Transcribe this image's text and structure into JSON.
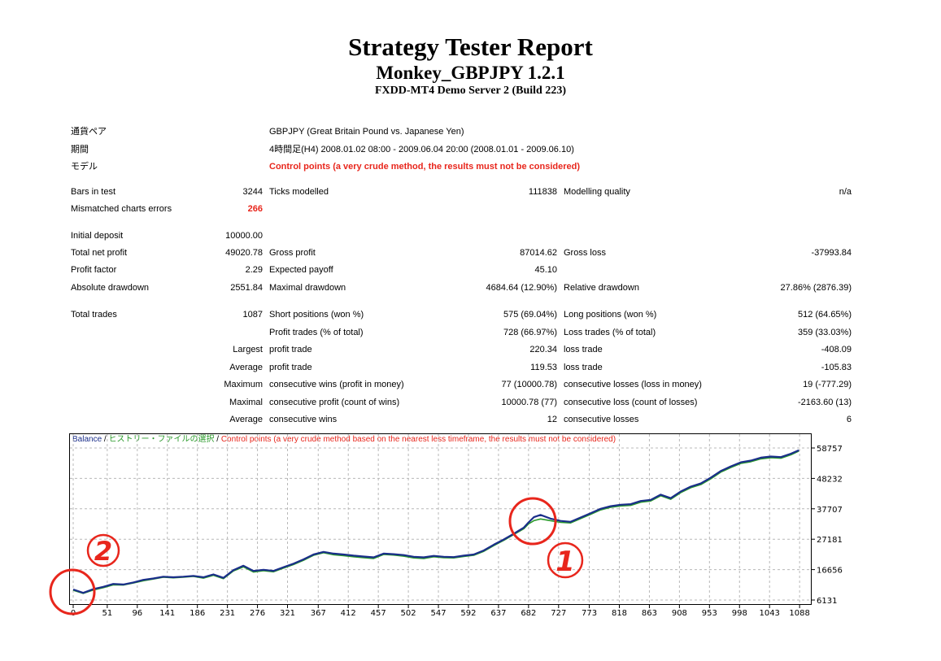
{
  "header": {
    "title": "Strategy Tester Report",
    "subtitle": "Monkey_GBPJPY 1.2.1",
    "server": "FXDD-MT4 Demo Server 2 (Build 223)"
  },
  "info": {
    "symbol_label": "通貨ペア",
    "symbol_value": "GBPJPY (Great Britain Pound vs. Japanese Yen)",
    "period_label": "期間",
    "period_value": "4時間足(H4) 2008.01.02 08:00 - 2009.06.04 20:00 (2008.01.01 - 2009.06.10)",
    "model_label": "モデル",
    "model_value": "Control points (a very crude method, the results must not be considered)"
  },
  "stats": {
    "bars_label": "Bars in test",
    "bars_value": "3244",
    "ticks_label": "Ticks modelled",
    "ticks_value": "111838",
    "quality_label": "Modelling quality",
    "quality_value": "n/a",
    "mismatch_label": "Mismatched charts errors",
    "mismatch_value": "266",
    "deposit_label": "Initial deposit",
    "deposit_value": "10000.00",
    "netprofit_label": "Total net profit",
    "netprofit_value": "49020.78",
    "grossprofit_label": "Gross profit",
    "grossprofit_value": "87014.62",
    "grossloss_label": "Gross loss",
    "grossloss_value": "-37993.84",
    "pf_label": "Profit factor",
    "pf_value": "2.29",
    "payoff_label": "Expected payoff",
    "payoff_value": "45.10",
    "absdd_label": "Absolute drawdown",
    "absdd_value": "2551.84",
    "maxdd_label": "Maximal drawdown",
    "maxdd_value": "4684.64 (12.90%)",
    "reldd_label": "Relative drawdown",
    "reldd_value": "27.86% (2876.39)",
    "trades_label": "Total trades",
    "trades_value": "1087",
    "short_label": "Short positions (won %)",
    "short_value": "575 (69.04%)",
    "long_label": "Long positions (won %)",
    "long_value": "512 (64.65%)",
    "ptrades_label": "Profit trades (% of total)",
    "ptrades_value": "728 (66.97%)",
    "ltrades_label": "Loss trades (% of total)",
    "ltrades_value": "359 (33.03%)",
    "largest_label": "Largest",
    "largest_profit_label": "profit trade",
    "largest_profit_value": "220.34",
    "largest_loss_label": "loss trade",
    "largest_loss_value": "-408.09",
    "average_label": "Average",
    "avg_profit_label": "profit trade",
    "avg_profit_value": "119.53",
    "avg_loss_label": "loss trade",
    "avg_loss_value": "-105.83",
    "maximum_label": "Maximum",
    "max_wins_label": "consecutive wins (profit in money)",
    "max_wins_value": "77 (10000.78)",
    "max_losses_label": "consecutive losses (loss in money)",
    "max_losses_value": "19 (-777.29)",
    "maximal_label": "Maximal",
    "maxl_profit_label": "consecutive profit (count of wins)",
    "maxl_profit_value": "10000.78 (77)",
    "maxl_loss_label": "consecutive loss (count of losses)",
    "maxl_loss_value": "-2163.60 (13)",
    "average2_label": "Average",
    "avg_cons_wins_label": "consecutive wins",
    "avg_cons_wins_value": "12",
    "avg_cons_losses_label": "consecutive losses",
    "avg_cons_losses_value": "6"
  },
  "chart_legend": {
    "balance": "Balance",
    "sep1": " / ",
    "history": "ヒストリー・ファイルの選択",
    "sep2": " / ",
    "control": "Control points (a very crude method based on the nearest less timeframe, the results must not be considered)"
  },
  "annotations": {
    "marker1": "1",
    "marker2": "2"
  },
  "colors": {
    "balance": "#1a2e8a",
    "equity": "#2a9a2a",
    "warning": "#e8261c",
    "annotation": "#e8261c"
  },
  "chart_data": {
    "type": "line",
    "x_ticks": [
      "0",
      "51",
      "96",
      "141",
      "186",
      "231",
      "276",
      "321",
      "367",
      "412",
      "457",
      "502",
      "547",
      "592",
      "637",
      "682",
      "727",
      "773",
      "818",
      "863",
      "908",
      "953",
      "998",
      "1043",
      "1088"
    ],
    "y_ticks": [
      "58757",
      "48232",
      "37707",
      "27181",
      "16656",
      "6131"
    ],
    "xlim": [
      0,
      1100
    ],
    "ylim": [
      6131,
      58757
    ],
    "grid": true,
    "series": [
      {
        "name": "Balance",
        "x": [
          0,
          15,
          30,
          45,
          60,
          75,
          90,
          105,
          120,
          135,
          150,
          165,
          180,
          195,
          210,
          225,
          240,
          255,
          270,
          285,
          300,
          315,
          330,
          345,
          360,
          375,
          390,
          405,
          420,
          435,
          450,
          465,
          480,
          495,
          510,
          525,
          540,
          555,
          570,
          585,
          600,
          615,
          630,
          645,
          660,
          675,
          682,
          690,
          700,
          715,
          730,
          745,
          760,
          775,
          790,
          805,
          820,
          835,
          850,
          865,
          880,
          895,
          910,
          925,
          940,
          955,
          970,
          985,
          1000,
          1015,
          1030,
          1045,
          1060,
          1075,
          1087
        ],
        "values": [
          9800,
          8600,
          9900,
          10700,
          11700,
          11500,
          12200,
          13100,
          13600,
          14200,
          14000,
          14200,
          14500,
          14000,
          15000,
          13800,
          16500,
          18000,
          16200,
          16600,
          16200,
          17500,
          18700,
          20200,
          21900,
          22800,
          22200,
          21900,
          21500,
          21200,
          20900,
          22200,
          22000,
          21700,
          21100,
          20900,
          21400,
          21100,
          21000,
          21500,
          21900,
          23300,
          25300,
          27100,
          29100,
          31200,
          33000,
          34800,
          35600,
          34300,
          33500,
          33200,
          34700,
          36200,
          37700,
          38600,
          39100,
          39300,
          40400,
          40800,
          42600,
          41400,
          43700,
          45400,
          46500,
          48500,
          50800,
          52400,
          53800,
          54400,
          55400,
          55800,
          55600,
          56800,
          58000
        ]
      },
      {
        "name": "",
        "x": [
          0,
          15,
          30,
          45,
          60,
          75,
          90,
          105,
          120,
          135,
          150,
          165,
          180,
          195,
          210,
          225,
          240,
          255,
          270,
          285,
          300,
          315,
          330,
          345,
          360,
          375,
          390,
          405,
          420,
          435,
          450,
          465,
          480,
          495,
          510,
          525,
          540,
          555,
          570,
          585,
          600,
          615,
          630,
          645,
          660,
          675,
          682,
          690,
          700,
          715,
          730,
          745,
          760,
          775,
          790,
          805,
          820,
          835,
          850,
          865,
          880,
          895,
          910,
          925,
          940,
          955,
          970,
          985,
          1000,
          1015,
          1030,
          1045,
          1060,
          1075,
          1087
        ],
        "values": [
          9500,
          8400,
          9600,
          10400,
          11400,
          11300,
          12000,
          12800,
          13400,
          14000,
          13800,
          14000,
          14300,
          13700,
          14700,
          13500,
          16200,
          17600,
          15800,
          16300,
          15900,
          17200,
          18400,
          19900,
          21600,
          22500,
          21800,
          21500,
          21100,
          20800,
          20500,
          21900,
          21700,
          21300,
          20700,
          20500,
          21100,
          20800,
          20700,
          21200,
          21600,
          23000,
          25000,
          26800,
          28800,
          30800,
          32500,
          33600,
          34200,
          33600,
          33000,
          32800,
          34300,
          35800,
          37300,
          38200,
          38700,
          38900,
          40000,
          40400,
          42200,
          41000,
          43300,
          45000,
          46100,
          48100,
          50400,
          52000,
          53400,
          54000,
          55000,
          55400,
          55200,
          56400,
          57700
        ]
      }
    ]
  }
}
